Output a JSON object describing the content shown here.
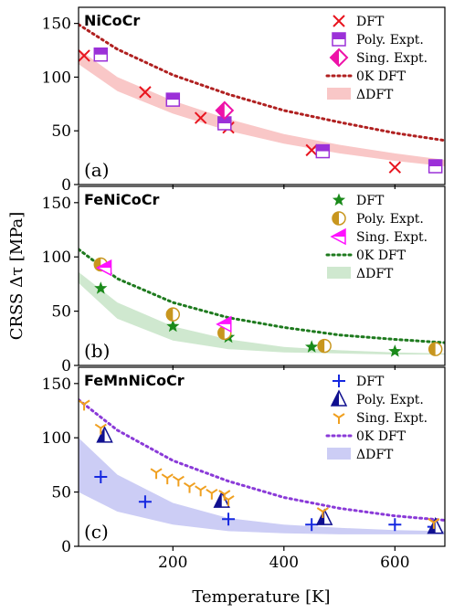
{
  "figure": {
    "xlabel": "Temperature [K]",
    "ylabel": "CRSS Δτ [MPa]",
    "xticks": [
      200,
      400,
      600
    ],
    "yticks": [
      0,
      50,
      100,
      150
    ],
    "xlim": [
      30,
      690
    ],
    "ylim": [
      0,
      165
    ]
  },
  "chart_data": [
    {
      "type": "scatter",
      "title": "NiCoCr",
      "panel_label": "(a)",
      "xlim": [
        30,
        690
      ],
      "ylim": [
        0,
        165
      ],
      "legend_position": "top-right",
      "series": [
        {
          "name": "DFT",
          "marker": "x",
          "color": "#e8141e",
          "points": [
            [
              40,
              120
            ],
            [
              150,
              86
            ],
            [
              250,
              62
            ],
            [
              300,
              53
            ],
            [
              450,
              32
            ],
            [
              600,
              16
            ]
          ]
        },
        {
          "name": "Poly. Expt.",
          "marker": "square-half",
          "color": "#9b30d8",
          "points": [
            [
              70,
              121
            ],
            [
              200,
              79
            ],
            [
              293,
              57
            ],
            [
              470,
              31
            ],
            [
              673,
              17
            ]
          ]
        },
        {
          "name": "Sing. Expt.",
          "marker": "diamond-half",
          "color": "#ee12a8",
          "points": [
            [
              293,
              69
            ]
          ]
        },
        {
          "name": "0K DFT",
          "type": "dotted-line",
          "color": "#b02020",
          "x": [
            30,
            100,
            200,
            300,
            400,
            500,
            600,
            690
          ],
          "y": [
            149,
            126,
            102,
            84,
            69,
            58,
            48,
            41
          ]
        },
        {
          "name": "ΔDFT",
          "type": "band",
          "color": "#f9c7c7",
          "x": [
            30,
            100,
            200,
            300,
            400,
            500,
            600,
            690
          ],
          "lower": [
            112,
            87,
            66,
            50,
            38,
            29,
            22,
            17
          ],
          "upper": [
            126,
            100,
            78,
            61,
            47,
            37,
            29,
            23
          ]
        }
      ]
    },
    {
      "type": "scatter",
      "title": "FeNiCoCr",
      "panel_label": "(b)",
      "xlim": [
        30,
        690
      ],
      "ylim": [
        0,
        165
      ],
      "legend_position": "top-right",
      "series": [
        {
          "name": "DFT",
          "marker": "star",
          "color": "#1a8a1a",
          "points": [
            [
              70,
              71
            ],
            [
              200,
              36
            ],
            [
              300,
              26
            ],
            [
              450,
              17
            ],
            [
              600,
              13
            ]
          ]
        },
        {
          "name": "Poly. Expt.",
          "marker": "circle-half",
          "color": "#c8961e",
          "points": [
            [
              70,
              93
            ],
            [
              200,
              47
            ],
            [
              293,
              30
            ],
            [
              473,
              18
            ],
            [
              673,
              15
            ]
          ]
        },
        {
          "name": "Sing. Expt.",
          "marker": "triangle-left-half",
          "color": "#ff10ff",
          "points": [
            [
              77,
              90
            ],
            [
              293,
              38
            ]
          ]
        },
        {
          "name": "0K DFT",
          "type": "dotted-line",
          "color": "#1e7a1e",
          "x": [
            30,
            100,
            200,
            300,
            400,
            500,
            600,
            690
          ],
          "y": [
            107,
            80,
            58,
            44,
            35,
            28,
            24,
            21
          ]
        },
        {
          "name": "ΔDFT",
          "type": "band",
          "color": "#cfe8cf",
          "x": [
            30,
            100,
            200,
            300,
            400,
            500,
            600,
            690
          ],
          "lower": [
            76,
            43,
            23,
            15,
            12,
            11,
            10,
            10
          ],
          "upper": [
            86,
            58,
            36,
            24,
            17,
            14,
            12,
            11
          ]
        }
      ]
    },
    {
      "type": "scatter",
      "title": "FeMnNiCoCr",
      "panel_label": "(c)",
      "xlim": [
        30,
        690
      ],
      "ylim": [
        0,
        165
      ],
      "legend_position": "top-right",
      "series": [
        {
          "name": "DFT",
          "marker": "plus",
          "color": "#1528e0",
          "points": [
            [
              70,
              64
            ],
            [
              150,
              41
            ],
            [
              300,
              25
            ],
            [
              450,
              20
            ],
            [
              600,
              20
            ],
            [
              670,
              18
            ]
          ]
        },
        {
          "name": "Poly. Expt.",
          "marker": "triangle-up-half",
          "color": "#101090",
          "points": [
            [
              77,
              102
            ],
            [
              288,
              42
            ],
            [
              473,
              26
            ],
            [
              673,
              18
            ]
          ]
        },
        {
          "name": "Sing. Expt.",
          "marker": "tri-down",
          "color": "#f0a020",
          "points": [
            [
              40,
              131
            ],
            [
              70,
              109
            ],
            [
              170,
              68
            ],
            [
              190,
              63
            ],
            [
              210,
              61
            ],
            [
              230,
              55
            ],
            [
              250,
              52
            ],
            [
              270,
              49
            ],
            [
              293,
              48
            ],
            [
              300,
              43
            ],
            [
              470,
              32
            ],
            [
              670,
              22
            ]
          ]
        },
        {
          "name": "0K DFT",
          "type": "dotted-line",
          "color": "#8a3ad8",
          "x": [
            30,
            100,
            200,
            300,
            400,
            500,
            600,
            690
          ],
          "y": [
            135,
            107,
            79,
            60,
            45,
            35,
            28,
            24
          ]
        },
        {
          "name": "ΔDFT",
          "type": "band",
          "color": "#cccdf5",
          "x": [
            30,
            100,
            200,
            300,
            400,
            500,
            600,
            690
          ],
          "lower": [
            50,
            32,
            20,
            14,
            12,
            11,
            11,
            11
          ],
          "upper": [
            100,
            66,
            40,
            26,
            20,
            17,
            15,
            14
          ]
        }
      ]
    }
  ]
}
